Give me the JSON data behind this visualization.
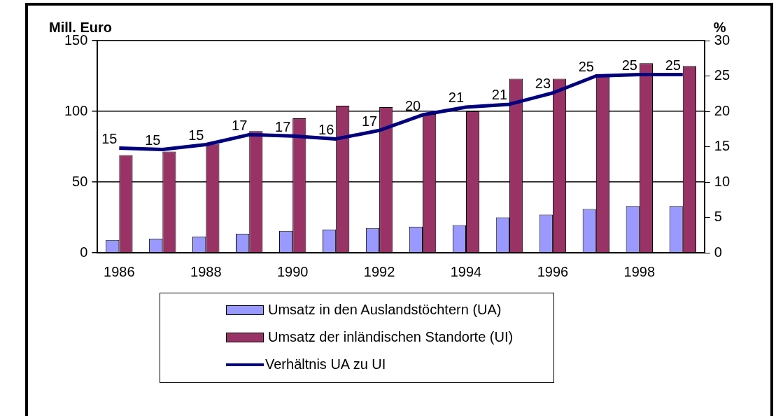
{
  "chart_data": {
    "type": "bar",
    "ylabel": "Mill. Euro",
    "y2label": "%",
    "categories": [
      "1986",
      null,
      "1988",
      null,
      "1990",
      null,
      "1992",
      null,
      "1994",
      null,
      "1996",
      null,
      "1998",
      null
    ],
    "series": [
      {
        "name": "Umsatz in den Auslandstöchtern (UA)",
        "color": "#9999ff",
        "values": [
          9,
          10,
          11.5,
          13.5,
          15.5,
          16.5,
          17.5,
          18.5,
          19.5,
          25,
          27,
          31,
          33,
          33
        ]
      },
      {
        "name": "Umsatz der inländischen Standorte (UI)",
        "color": "#993366",
        "values": [
          69,
          71.5,
          77,
          86,
          95,
          104,
          103,
          98,
          100,
          123,
          123,
          125,
          134,
          132
        ]
      },
      {
        "name": "Verhältnis UA zu UI",
        "type": "line",
        "axis": "y2",
        "color": "#000080",
        "values": [
          14.8,
          14.6,
          15.3,
          16.7,
          16.5,
          16.1,
          17.3,
          19.5,
          20.6,
          21,
          22.6,
          25,
          25.2,
          25.2
        ],
        "value_labels": [
          "15",
          "15",
          "15",
          "17",
          "17",
          "16",
          "17",
          "20",
          "21",
          "21",
          "23",
          "25",
          "25",
          "25"
        ]
      }
    ],
    "ylim": [
      0,
      150
    ],
    "yticks": [
      0,
      50,
      100,
      150
    ],
    "y2lim": [
      0,
      30
    ],
    "y2ticks": [
      0,
      5,
      10,
      15,
      20,
      25,
      30
    ],
    "grid": "y",
    "legend": "bottom",
    "marker": "none",
    "line_style": "solid"
  }
}
